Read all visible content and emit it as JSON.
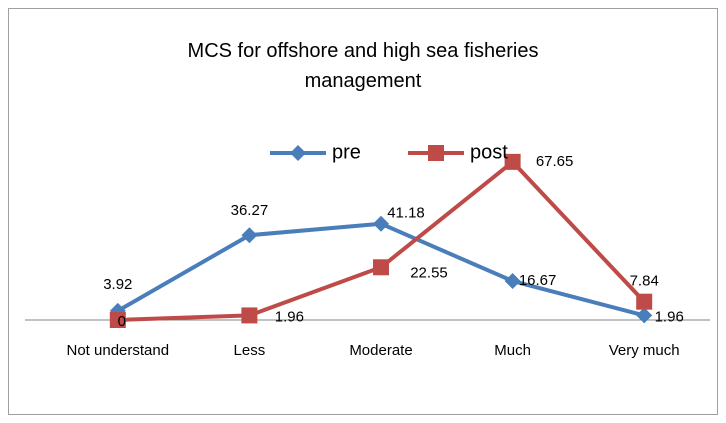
{
  "chart_data": {
    "type": "line",
    "title": "MCS for offshore and high sea fisheries management",
    "categories": [
      "Not understand",
      "Less",
      "Moderate",
      "Much",
      "Very much"
    ],
    "series": [
      {
        "name": "pre",
        "color": "#4a7ebb",
        "values": [
          3.92,
          36.27,
          41.18,
          16.67,
          1.96
        ]
      },
      {
        "name": "post",
        "color": "#be4b48",
        "values": [
          0,
          1.96,
          22.55,
          67.65,
          7.84
        ]
      }
    ],
    "ylim": [
      0,
      80
    ],
    "legend": "top"
  }
}
